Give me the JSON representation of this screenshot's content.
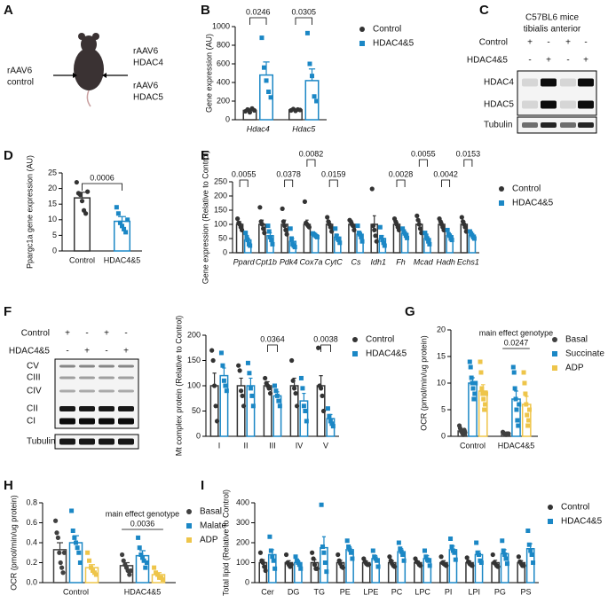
{
  "panel_labels": [
    "A",
    "B",
    "C",
    "D",
    "E",
    "F",
    "G",
    "H",
    "I"
  ],
  "diagram": {
    "left": [
      "rAAV6",
      "control"
    ],
    "right_top": [
      "rAAV6",
      "HDAC4"
    ],
    "right_bottom": [
      "rAAV6",
      "HDAC5"
    ]
  },
  "blot_c": {
    "title": [
      "C57BL6 mice",
      "tibialis anterior"
    ],
    "conditions": [
      {
        "name": "Control",
        "signs": [
          "+",
          "-",
          "+",
          "-"
        ]
      },
      {
        "name": "HDAC4&5",
        "signs": [
          "-",
          "+",
          "-",
          "+"
        ]
      }
    ],
    "bands": [
      "HDAC4",
      "HDAC5",
      "Tubulin"
    ]
  },
  "blot_f": {
    "conditions": [
      {
        "name": "Control",
        "signs": [
          "+",
          "-",
          "+",
          "-"
        ]
      },
      {
        "name": "HDAC4&5",
        "signs": [
          "-",
          "+",
          "-",
          "+"
        ]
      }
    ],
    "bands": [
      "CV",
      "CIII",
      "CIV",
      "CII",
      "CI",
      "Tubulin"
    ]
  },
  "chart_data": [
    {
      "type": "bar",
      "ylabel": "Gene expression (AU)",
      "categories": [
        "Hdac4",
        "Hdac5"
      ],
      "italic_categories": true,
      "ylim": [
        0,
        1000
      ],
      "yticks": [
        0,
        200,
        400,
        600,
        800,
        1000
      ],
      "legend": "right",
      "series": [
        {
          "name": "Control",
          "color": "#333333",
          "marker": "circle",
          "values": [
            100,
            105
          ],
          "errors": [
            15,
            10
          ],
          "points": [
            [
              90,
              110,
              80,
              120,
              100
            ],
            [
              100,
              115,
              95,
              110,
              105
            ]
          ]
        },
        {
          "name": "HDAC4&5",
          "color": "#1b87c5",
          "marker": "square",
          "values": [
            480,
            420
          ],
          "errors": [
            140,
            125
          ],
          "points": [
            [
              880,
              560,
              420,
              300,
              240
            ],
            [
              930,
              600,
              470,
              250,
              200
            ]
          ]
        }
      ],
      "annotations": [
        {
          "label": "0.0246"
        },
        {
          "label": "0.0305"
        }
      ]
    },
    {
      "type": "bar",
      "ylabel": "Ppargc1a gene expression (AU)",
      "categories": [
        "Control",
        "HDAC4&5"
      ],
      "ylim": [
        0,
        25
      ],
      "yticks": [
        0,
        5,
        10,
        15,
        20,
        25
      ],
      "series": [
        {
          "colors": [
            "#333333",
            "#1b87c5"
          ],
          "markers": [
            "circle",
            "square"
          ],
          "values": [
            17,
            9.5
          ],
          "errors": [
            1.8,
            1.5
          ],
          "points": [
            [
              22,
              18.5,
              18,
              16,
              13,
              12,
              19
            ],
            [
              14,
              12,
              9,
              8,
              7,
              6,
              10
            ]
          ]
        }
      ],
      "annotations": [
        {
          "label": "0.0006"
        }
      ]
    },
    {
      "type": "bar",
      "ylabel": "Gene expression (Relative to Control)",
      "categories": [
        "Ppard",
        "Cpt1b",
        "Pdk4",
        "Cox7a",
        "CytC",
        "Cs",
        "Idh1",
        "Fh",
        "Mcad",
        "Hadh",
        "Echs1"
      ],
      "italic_categories": true,
      "ylim": [
        0,
        250
      ],
      "yticks": [
        0,
        50,
        100,
        150,
        200,
        250
      ],
      "legend": "right",
      "series": [
        {
          "name": "Control",
          "color": "#333333",
          "marker": "circle",
          "values": [
            100,
            100,
            100,
            100,
            100,
            100,
            100,
            100,
            100,
            100,
            100
          ],
          "errors": [
            10,
            15,
            15,
            15,
            10,
            8,
            30,
            8,
            10,
            8,
            10
          ],
          "points": [
            [
              120,
              105,
              100,
              90,
              80
            ],
            [
              160,
              110,
              100,
              85,
              70
            ],
            [
              155,
              110,
              95,
              80,
              65
            ],
            [
              180,
              105,
              100,
              95,
              90
            ],
            [
              125,
              110,
              100,
              90,
              75
            ],
            [
              115,
              110,
              100,
              95,
              80
            ],
            [
              225,
              95,
              80,
              60,
              40
            ],
            [
              120,
              110,
              100,
              90,
              80
            ],
            [
              130,
              115,
              100,
              85,
              70
            ],
            [
              120,
              110,
              100,
              90,
              80
            ],
            [
              125,
              110,
              100,
              90,
              75
            ]
          ]
        },
        {
          "name": "HDAC4&5",
          "color": "#1b87c5",
          "marker": "square",
          "values": [
            45,
            60,
            40,
            62,
            55,
            65,
            50,
            68,
            50,
            60,
            62
          ],
          "errors": [
            8,
            10,
            10,
            3,
            8,
            10,
            10,
            6,
            7,
            6,
            5
          ],
          "points": [
            [
              70,
              55,
              45,
              30,
              25
            ],
            [
              95,
              75,
              55,
              45,
              30
            ],
            [
              85,
              50,
              30,
              25,
              20
            ],
            [
              68,
              65,
              62,
              58,
              55
            ],
            [
              85,
              60,
              50,
              45,
              35
            ],
            [
              95,
              70,
              65,
              55,
              40
            ],
            [
              90,
              55,
              45,
              35,
              25
            ],
            [
              85,
              75,
              68,
              60,
              52
            ],
            [
              70,
              60,
              50,
              40,
              30
            ],
            [
              80,
              65,
              60,
              50,
              45
            ],
            [
              75,
              68,
              62,
              55,
              50
            ]
          ]
        }
      ],
      "annotations": [
        {
          "label": "0.0055"
        },
        {
          "label": "0.0378"
        },
        {
          "label": "0.0082"
        },
        {
          "label": "0.0159"
        },
        {
          "label": "0.0028"
        },
        {
          "label": "0.0055"
        },
        {
          "label": "0.0042"
        },
        {
          "label": "0.0153"
        }
      ]
    },
    {
      "type": "bar",
      "ylabel": "Mt complex protein (Relative to Control)",
      "categories": [
        "I",
        "II",
        "III",
        "IV",
        "V"
      ],
      "ylim": [
        0,
        200
      ],
      "yticks": [
        0,
        50,
        100,
        150,
        200
      ],
      "legend": "right",
      "series": [
        {
          "name": "Control",
          "color": "#333333",
          "marker": "circle",
          "values": [
            100,
            100,
            100,
            100,
            100
          ],
          "errors": [
            25,
            15,
            8,
            15,
            20
          ],
          "points": [
            [
              170,
              150,
              100,
              60,
              30
            ],
            [
              140,
              130,
              90,
              80,
              60
            ],
            [
              115,
              105,
              100,
              95,
              85
            ],
            [
              150,
              110,
              95,
              85,
              60
            ],
            [
              175,
              100,
              95,
              80,
              50
            ]
          ]
        },
        {
          "name": "HDAC4&5",
          "color": "#1b87c5",
          "marker": "square",
          "values": [
            120,
            100,
            80,
            70,
            35
          ],
          "errors": [
            15,
            15,
            8,
            15,
            8
          ],
          "points": [
            [
              165,
              140,
              110,
              100,
              90
            ],
            [
              145,
              125,
              95,
              80,
              60
            ],
            [
              100,
              90,
              80,
              70,
              60
            ],
            [
              115,
              95,
              60,
              50,
              30
            ],
            [
              55,
              40,
              30,
              25,
              20
            ]
          ]
        }
      ],
      "annotations": [
        {
          "label": "0.0364"
        },
        {
          "label": "0.0038"
        }
      ]
    },
    {
      "type": "bar",
      "ylabel": "OCR (pmol/min/ug protein)",
      "categories": [
        "Control",
        "HDAC4&5"
      ],
      "ylim": [
        0,
        20
      ],
      "yticks": [
        0,
        5,
        10,
        15,
        20
      ],
      "legend": "right",
      "series": [
        {
          "name": "Basal",
          "color": "#404040",
          "marker": "circle",
          "values": [
            1,
            0.5
          ],
          "errors": [
            0.3,
            0.1
          ],
          "points": [
            [
              2,
              1.5,
              1,
              0.8,
              0.5,
              0.3,
              1.2,
              0.7
            ],
            [
              0.8,
              0.6,
              0.5,
              0.4,
              0.3,
              0.5,
              0.4,
              0.5
            ]
          ]
        },
        {
          "name": "Succinate",
          "color": "#1b87c5",
          "marker": "square",
          "values": [
            10,
            7
          ],
          "errors": [
            1,
            1.5
          ],
          "points": [
            [
              14,
              13,
              11,
              10,
              9,
              7,
              8,
              10
            ],
            [
              13,
              12,
              9,
              7,
              5,
              3,
              2,
              6
            ]
          ]
        },
        {
          "name": "ADP",
          "color": "#eec54a",
          "marker": "square",
          "values": [
            8.5,
            6
          ],
          "errors": [
            1.2,
            1.5
          ],
          "points": [
            [
              14,
              12,
              9,
              8,
              7,
              5,
              6,
              8
            ],
            [
              12,
              10,
              8,
              6,
              4,
              2,
              3,
              5
            ]
          ]
        }
      ],
      "annotations": [
        {
          "note": "main effect genotype",
          "label": "0.0247"
        }
      ]
    },
    {
      "type": "bar",
      "ylabel": "OCR (pmol/min/ug protein)",
      "categories": [
        "Control",
        "HDAC4&5"
      ],
      "ylim": [
        0,
        0.8
      ],
      "yticks": [
        {
          "value": 0,
          "label": "0.0"
        },
        0.2,
        0.4,
        0.6,
        0.8
      ],
      "legend": "right",
      "series": [
        {
          "name": "Basal",
          "color": "#404040",
          "marker": "circle",
          "values": [
            0.33,
            0.17
          ],
          "errors": [
            0.07,
            0.03
          ],
          "points": [
            [
              0.62,
              0.5,
              0.45,
              0.3,
              0.2,
              0.15,
              0.1,
              0.3
            ],
            [
              0.28,
              0.22,
              0.18,
              0.15,
              0.12,
              0.08,
              0.12
            ]
          ]
        },
        {
          "name": "Malate",
          "color": "#1b87c5",
          "marker": "square",
          "values": [
            0.4,
            0.27
          ],
          "errors": [
            0.07,
            0.05
          ],
          "points": [
            [
              0.72,
              0.52,
              0.45,
              0.4,
              0.35,
              0.3,
              0.2
            ],
            [
              0.45,
              0.35,
              0.28,
              0.25,
              0.22,
              0.15,
              0.2
            ]
          ]
        },
        {
          "name": "ADP",
          "color": "#eec54a",
          "marker": "square",
          "values": [
            0.15,
            0.08
          ],
          "errors": [
            0.03,
            0.02
          ],
          "points": [
            [
              0.3,
              0.22,
              0.15,
              0.12,
              0.1,
              0.08
            ],
            [
              0.15,
              0.1,
              0.08,
              0.05,
              0.05,
              0.03
            ]
          ]
        }
      ],
      "annotations": [
        {
          "note": "main effect genotype",
          "label": "0.0036"
        }
      ]
    },
    {
      "type": "bar",
      "ylabel": "Total lipid (Relative to Control)",
      "categories": [
        "Cer",
        "DG",
        "TG",
        "PE",
        "LPE",
        "PC",
        "LPC",
        "PI",
        "LPI",
        "PG",
        "PS"
      ],
      "ylim": [
        0,
        400
      ],
      "yticks": [
        0,
        100,
        200,
        300,
        400
      ],
      "legend": "right",
      "series": [
        {
          "name": "Control",
          "color": "#333333",
          "marker": "circle",
          "values": [
            100,
            100,
            100,
            100,
            100,
            100,
            100,
            100,
            100,
            100,
            100
          ],
          "errors": [
            15,
            10,
            15,
            12,
            8,
            10,
            8,
            10,
            8,
            12,
            10
          ],
          "points": [
            [
              150,
              110,
              100,
              80,
              60
            ],
            [
              140,
              100,
              90,
              80,
              90
            ],
            [
              150,
              120,
              90,
              70,
              70
            ],
            [
              140,
              110,
              95,
              80,
              75
            ],
            [
              120,
              105,
              95,
              90,
              90
            ],
            [
              130,
              110,
              95,
              85,
              80
            ],
            [
              120,
              105,
              100,
              90,
              85
            ],
            [
              130,
              100,
              95,
              90,
              85
            ],
            [
              125,
              105,
              95,
              90,
              85
            ],
            [
              140,
              100,
              95,
              85,
              80
            ],
            [
              130,
              105,
              95,
              85,
              85
            ]
          ]
        },
        {
          "name": "HDAC4&5",
          "color": "#1b87c5",
          "marker": "square",
          "values": [
            140,
            100,
            175,
            165,
            120,
            155,
            120,
            165,
            140,
            145,
            170
          ],
          "errors": [
            25,
            12,
            55,
            15,
            15,
            15,
            15,
            18,
            18,
            20,
            25
          ],
          "points": [
            [
              230,
              160,
              130,
              110,
              70
            ],
            [
              130,
              110,
              100,
              90,
              70
            ],
            [
              390,
              180,
              150,
              100,
              55
            ],
            [
              210,
              180,
              165,
              150,
              120
            ],
            [
              160,
              130,
              120,
              110,
              80
            ],
            [
              200,
              170,
              155,
              140,
              110
            ],
            [
              160,
              130,
              115,
              110,
              85
            ],
            [
              220,
              180,
              160,
              150,
              115
            ],
            [
              200,
              150,
              140,
              110,
              100
            ],
            [
              210,
              160,
              140,
              120,
              95
            ],
            [
              260,
              190,
              160,
              140,
              100
            ]
          ]
        }
      ]
    }
  ]
}
